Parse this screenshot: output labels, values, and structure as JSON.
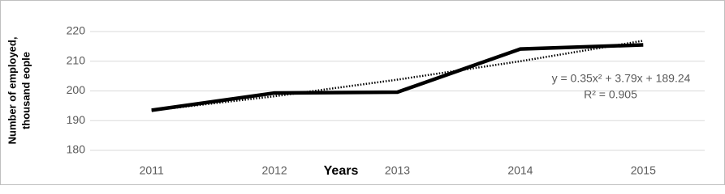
{
  "chart_data": {
    "type": "line",
    "y_label": [
      "Number of employed,",
      "thousand eople"
    ],
    "x_label": "Years",
    "categories": [
      "2011",
      "2012",
      "2013",
      "2014",
      "2015"
    ],
    "series": [
      {
        "color": "#000000",
        "values": [
          193.5,
          199.3,
          199.6,
          214.1,
          215.5
        ]
      }
    ],
    "trendline": {
      "color": "#000000",
      "values": [
        193.4,
        198.2,
        203.8,
        210.0,
        216.9
      ],
      "equation": "y = 0.35x² + 3.79x + 189.24",
      "r_squared": "R² = 0.905"
    },
    "ylim": [
      180,
      220
    ],
    "yticks": [
      180,
      190,
      200,
      210,
      220
    ],
    "grid": true
  }
}
